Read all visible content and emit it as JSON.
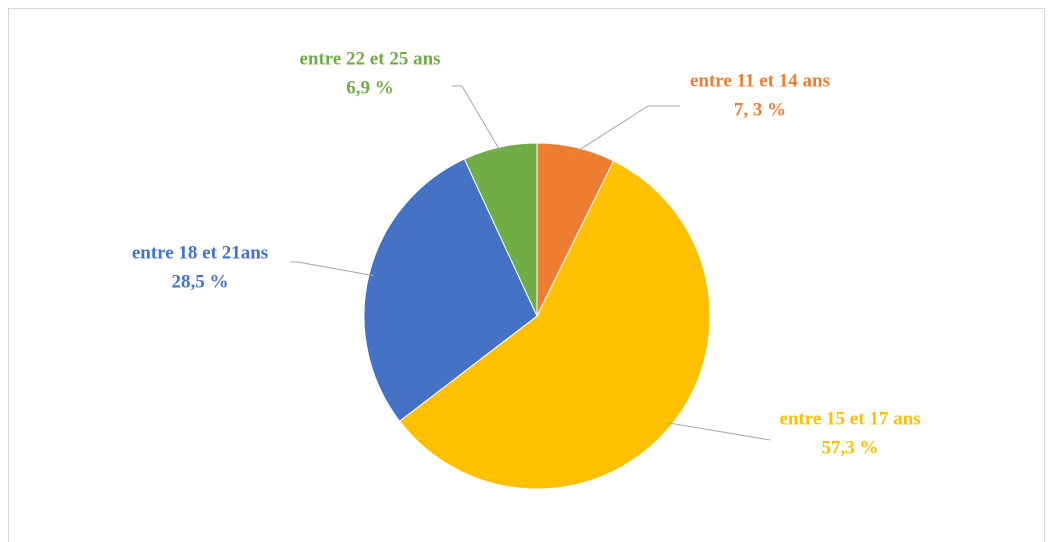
{
  "chart_data": {
    "type": "pie",
    "categories": [
      "entre 11 et 14 ans",
      "entre 15 et 17 ans",
      "entre 18 et 21ans",
      "entre 22 et 25 ans"
    ],
    "values": [
      7.3,
      57.3,
      28.5,
      6.9
    ],
    "value_labels": [
      "7, 3 %",
      "57,3 %",
      "28,5 %",
      "6,9 %"
    ],
    "colors": [
      "#ed7d31",
      "#ffc000",
      "#4472c4",
      "#70ad47"
    ]
  }
}
